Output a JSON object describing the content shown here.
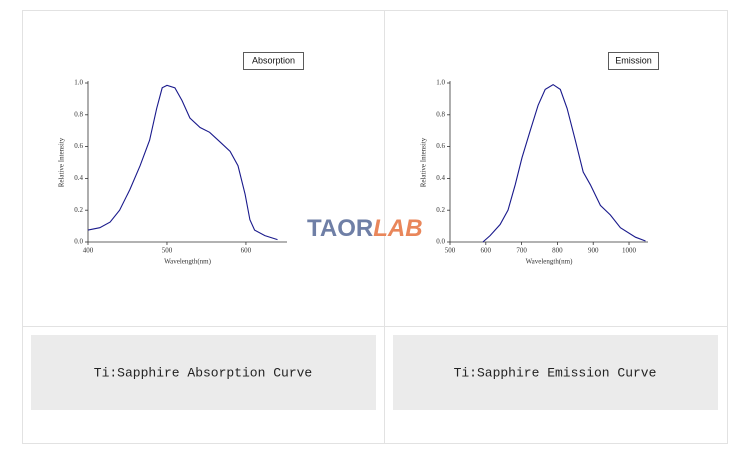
{
  "chart_data": [
    {
      "type": "line",
      "xlabel": "Wavelength(nm)",
      "ylabel": "Relative Intensity",
      "x": [
        400,
        415,
        428,
        440,
        453,
        466,
        478,
        487,
        494,
        500,
        510,
        519,
        529,
        542,
        554,
        567,
        580,
        590,
        599,
        605,
        611,
        624,
        640
      ],
      "series": [
        {
          "name": "Absorption",
          "color": "#1a1a8c",
          "values": [
            0.075,
            0.09,
            0.125,
            0.2,
            0.33,
            0.48,
            0.64,
            0.84,
            0.97,
            0.985,
            0.97,
            0.89,
            0.78,
            0.72,
            0.69,
            0.63,
            0.57,
            0.48,
            0.3,
            0.14,
            0.075,
            0.04,
            0.015
          ]
        }
      ],
      "xlim": [
        400,
        652
      ],
      "ylim": [
        0,
        1
      ],
      "xticks": [
        400,
        500,
        600
      ],
      "yticks": [
        {
          "value": 0,
          "label": "0.0"
        },
        0.2,
        0.4,
        0.6,
        0.8,
        {
          "value": 1,
          "label": "1.0"
        }
      ],
      "caption": "Ti:Sapphire Absorption Curve"
    },
    {
      "type": "line",
      "xlabel": "Wavelength(nm)",
      "ylabel": "Relative Intensity",
      "x": [
        592,
        612,
        640,
        662,
        682,
        701,
        724,
        746,
        766,
        788,
        808,
        827,
        850,
        872,
        892,
        920,
        948,
        976,
        1018,
        1046
      ],
      "series": [
        {
          "name": "Emission",
          "color": "#1a1a8c",
          "values": [
            0,
            0.04,
            0.11,
            0.2,
            0.36,
            0.53,
            0.7,
            0.86,
            0.96,
            0.99,
            0.96,
            0.84,
            0.64,
            0.44,
            0.36,
            0.23,
            0.17,
            0.09,
            0.03,
            0.006
          ]
        }
      ],
      "xlim": [
        500,
        1053
      ],
      "ylim": [
        0,
        1
      ],
      "xticks": [
        500,
        600,
        700,
        800,
        900,
        1000
      ],
      "yticks": [
        {
          "value": 0,
          "label": "0.0"
        },
        0.2,
        0.4,
        0.6,
        0.8,
        {
          "value": 1,
          "label": "1.0"
        }
      ],
      "caption": "Ti:Sapphire Emission Curve"
    }
  ],
  "watermark": [
    "TAOR",
    "LAB"
  ]
}
